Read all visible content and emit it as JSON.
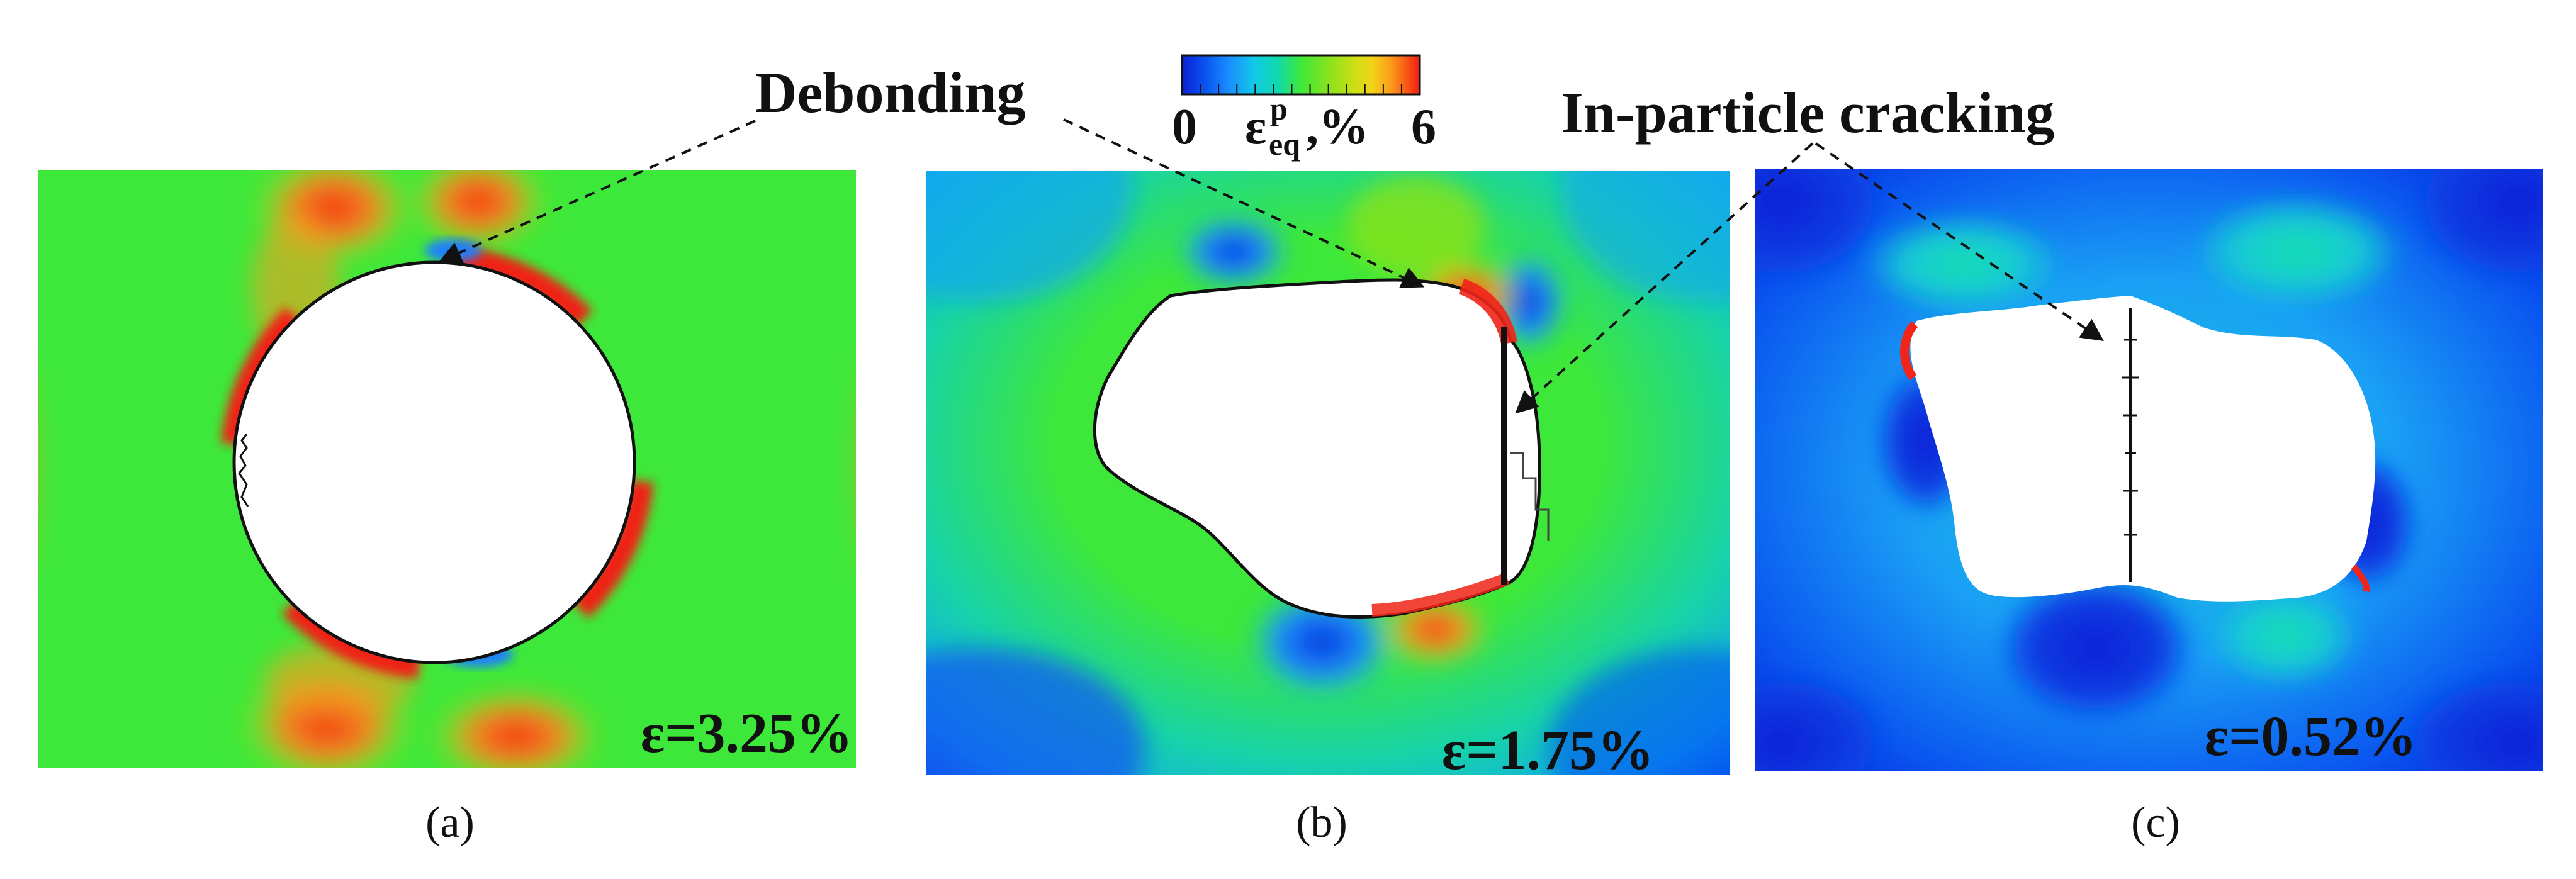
{
  "annotations": {
    "debonding": "Debonding",
    "in_particle_cracking": "In-particle cracking"
  },
  "colorbar": {
    "min_label": "0",
    "max_label": "6",
    "symbol": "ε",
    "superscript": "p",
    "subscript": "eq",
    "unit": ",%",
    "colors": [
      "#0a1fd6",
      "#0a55f0",
      "#1a8fff",
      "#12c8e8",
      "#10d9b0",
      "#18e070",
      "#3ee83a",
      "#8ae21c",
      "#c9e014",
      "#f3d41a",
      "#fb9a1a",
      "#f85c14",
      "#ee1c14"
    ]
  },
  "panels": [
    {
      "caption": "(a)",
      "strain_label": "ε=3.25%"
    },
    {
      "caption": "(b)",
      "strain_label": "ε=1.75%"
    },
    {
      "caption": "(c)",
      "strain_label": "ε=0.52%"
    }
  ],
  "colors": {
    "red": "#f02418",
    "orange": "#f2a020",
    "green": "#3ee83a",
    "cyan": "#14c9d6",
    "blue": "#0a2fd8",
    "arrow": "#111111"
  }
}
